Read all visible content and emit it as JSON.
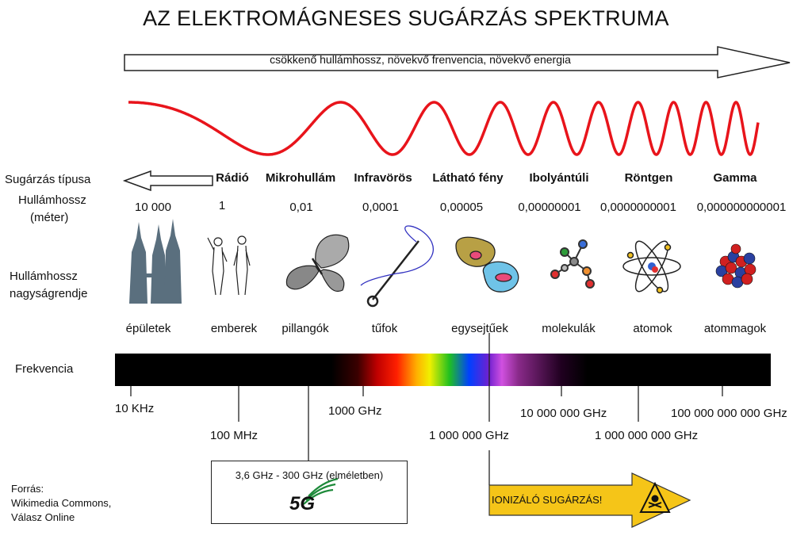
{
  "title": "AZ ELEKTROMÁGNESES SUGÁRZÁS SPEKTRUMA",
  "direction_arrow": {
    "text": "csökkenő hullámhossz, növekvő frenvencia, növekvő energia"
  },
  "wave_color": "#e8141b",
  "row_labels": {
    "type": "Sugárzás típusa",
    "wavelength_line1": "Hullámhossz",
    "wavelength_line2": "(méter)",
    "magnitude_line1": "Hullámhossz",
    "magnitude_line2": "nagyságrendje",
    "frequency": "Frekvencia"
  },
  "radiation_types": [
    "Rádió",
    "Mikrohullám",
    "Infravörös",
    "Látható fény",
    "Ibolyántúli",
    "Röntgen",
    "Gamma"
  ],
  "wavelengths": [
    "10 000",
    "1",
    "0,01",
    "0,0001",
    "0,00005",
    "0,00000001",
    "0,0000000001",
    "0,000000000001"
  ],
  "objects": [
    {
      "label": "épületek",
      "icon": "skyscrapers-icon"
    },
    {
      "label": "emberek",
      "icon": "humans-icon"
    },
    {
      "label": "pillangók",
      "icon": "butterfly-icon"
    },
    {
      "label": "tűfok",
      "icon": "needle-icon"
    },
    {
      "label": "egysejtűek",
      "icon": "protozoa-icon"
    },
    {
      "label": "molekulák",
      "icon": "molecule-icon"
    },
    {
      "label": "atomok",
      "icon": "atom-icon"
    },
    {
      "label": "atommagok",
      "icon": "nucleus-icon"
    }
  ],
  "frequencies": [
    "10 KHz",
    "100 MHz",
    "1000 GHz",
    "1 000 000 GHz",
    "10 000 000 GHz",
    "1 000 000 000 GHz",
    "100 000 000 000 GHz"
  ],
  "fiveg": {
    "range": "3,6 GHz - 300 GHz (elméletben)",
    "logo_text": "5G",
    "logo_color": "#1e8a3a"
  },
  "ionizing": {
    "text": "IONIZÁLÓ SUGÁRZÁS!",
    "color": "#f5c518",
    "icon": "radiation-hazard-icon"
  },
  "source": {
    "line1": "Forrás:",
    "line2": "Wikimedia Commons,",
    "line3": "Válasz Online"
  }
}
